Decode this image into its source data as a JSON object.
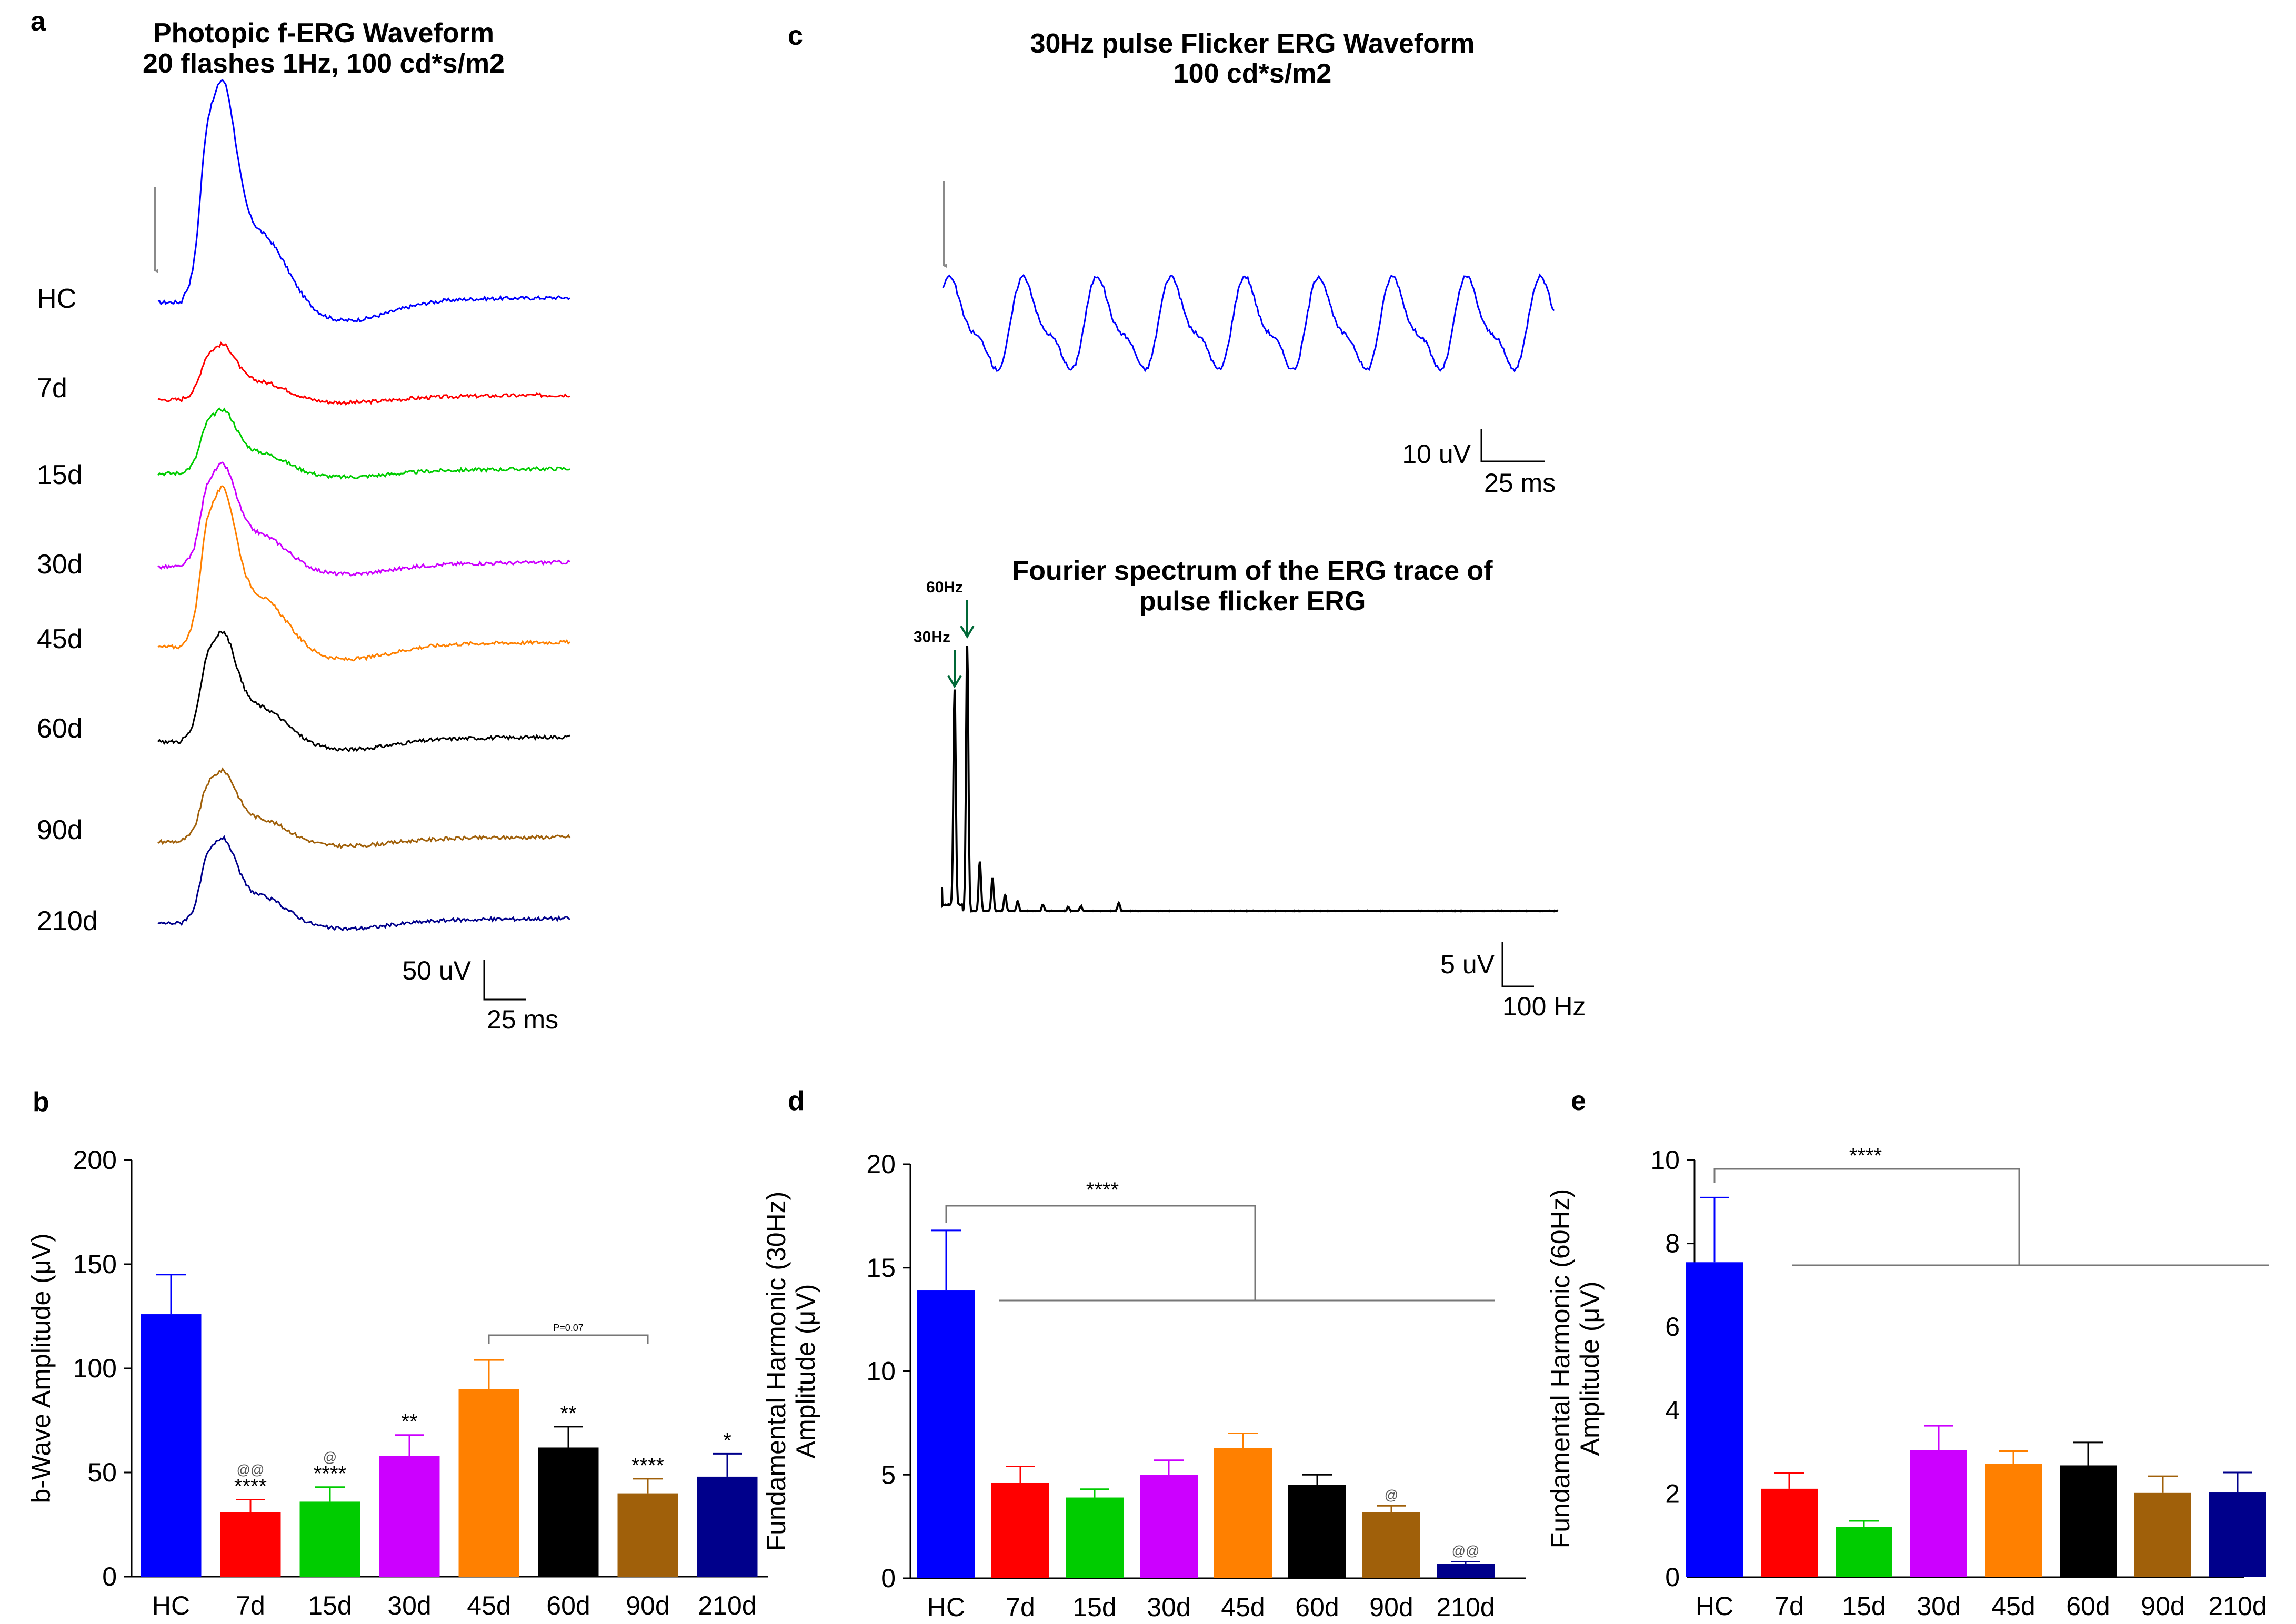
{
  "panel_labels": {
    "a": "a",
    "b": "b",
    "c": "c",
    "d": "d",
    "e": "e"
  },
  "colors": {
    "HC": "#0000ff",
    "7d": "#ff0000",
    "15d": "#00cc00",
    "30d": "#cc00ff",
    "45d": "#ff8000",
    "60d": "#000000",
    "90d": "#a0600a",
    "210d": "#00008b",
    "arrow_gray": "#8a8a8a",
    "arrow_green": "#006837"
  },
  "chart_data": [
    {
      "id": "a",
      "type": "line",
      "title_line1": "Photopic f-ERG Waveform",
      "title_line2": "20 flashes 1Hz, 100 cd*s/m2",
      "traces": [
        {
          "name": "HC",
          "peak_uV": 126
        },
        {
          "name": "7d",
          "peak_uV": 31
        },
        {
          "name": "15d",
          "peak_uV": 36
        },
        {
          "name": "30d",
          "peak_uV": 58
        },
        {
          "name": "45d",
          "peak_uV": 90
        },
        {
          "name": "60d",
          "peak_uV": 62
        },
        {
          "name": "90d",
          "peak_uV": 40
        },
        {
          "name": "210d",
          "peak_uV": 48
        }
      ],
      "scale_y": "50 uV",
      "scale_x": "25 ms"
    },
    {
      "id": "c1",
      "type": "line",
      "title_line1": "30Hz pulse Flicker ERG Waveform",
      "title_line2": "100 cd*s/m2",
      "cycles": 8,
      "scale_y": "10 uV",
      "scale_x": "25 ms"
    },
    {
      "id": "c2",
      "type": "line",
      "title_line1": "Fourier spectrum of the ERG trace of",
      "title_line2": "pulse flicker ERG",
      "peaks": [
        {
          "label": "30Hz",
          "freq_hz": 30,
          "amp_uV": 39
        },
        {
          "label": "60Hz",
          "freq_hz": 60,
          "amp_uV": 48
        }
      ],
      "scale_y": "5 uV",
      "scale_x": "100 Hz"
    },
    {
      "id": "b",
      "type": "bar",
      "ylabel": "b-Wave Amplitude (μV)",
      "ylim": [
        0,
        200
      ],
      "yticks": [
        0,
        50,
        100,
        150,
        200
      ],
      "categories": [
        "HC",
        "7d",
        "15d",
        "30d",
        "45d",
        "60d",
        "90d",
        "210d"
      ],
      "values": [
        126,
        31,
        36,
        58,
        90,
        62,
        40,
        48
      ],
      "errors": [
        19,
        6,
        7,
        10,
        14,
        10,
        7,
        11
      ],
      "significance": [
        "",
        "****",
        "****",
        "**",
        "",
        "**",
        "****",
        "*"
      ],
      "vs_15d_marks": [
        "",
        "@@",
        "@",
        "",
        "",
        "",
        "",
        ""
      ],
      "comparison": {
        "from": "45d",
        "to": "90d",
        "label": "P=0.07"
      }
    },
    {
      "id": "d",
      "type": "bar",
      "ylabel_line1": "Fundamental Harmonic (30Hz)",
      "ylabel_line2": "Amplitude (μV)",
      "ylim": [
        0,
        20
      ],
      "yticks": [
        0,
        5,
        10,
        15,
        20
      ],
      "categories": [
        "HC",
        "7d",
        "15d",
        "30d",
        "45d",
        "60d",
        "90d",
        "210d"
      ],
      "values": [
        13.9,
        4.6,
        3.9,
        5.0,
        6.3,
        4.5,
        3.2,
        0.7
      ],
      "errors": [
        2.9,
        0.8,
        0.4,
        0.7,
        0.7,
        0.5,
        0.3,
        0.1
      ],
      "marks": [
        "",
        "",
        "",
        "",
        "",
        "",
        "@",
        "@@"
      ],
      "bracket_label": "****"
    },
    {
      "id": "e",
      "type": "bar",
      "ylabel_line1": "Fundamental Harmonic (60Hz)",
      "ylabel_line2": "Amplitude (μV)",
      "ylim": [
        0,
        10
      ],
      "yticks": [
        0,
        2,
        4,
        6,
        8,
        10
      ],
      "categories": [
        "HC",
        "7d",
        "15d",
        "30d",
        "45d",
        "60d",
        "90d",
        "210d"
      ],
      "values": [
        7.55,
        2.12,
        1.2,
        3.05,
        2.72,
        2.68,
        2.02,
        2.03
      ],
      "errors": [
        1.55,
        0.38,
        0.15,
        0.58,
        0.3,
        0.55,
        0.4,
        0.48
      ],
      "bracket_label": "****"
    }
  ]
}
